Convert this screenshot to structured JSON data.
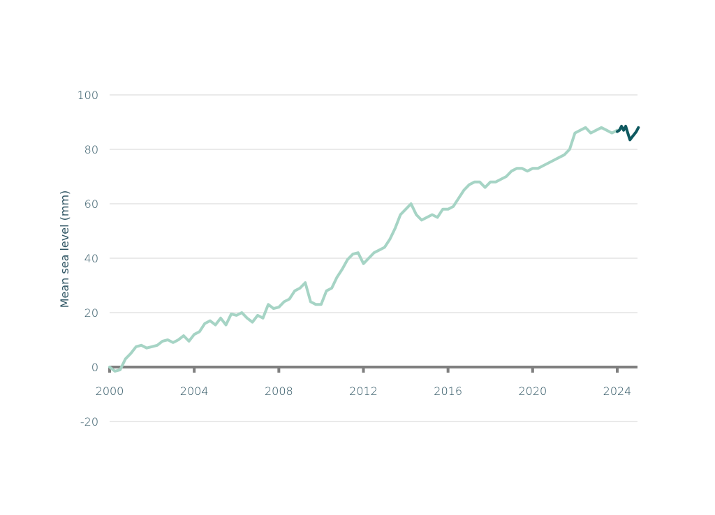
{
  "chart_data": {
    "type": "line",
    "title": "",
    "xlabel": "",
    "ylabel": "Mean sea level (mm)",
    "xlim": [
      2000,
      2025
    ],
    "ylim": [
      -20,
      100
    ],
    "grid": true,
    "legend": null,
    "x_ticks": [
      "2000",
      "2004",
      "2008",
      "2012",
      "2016",
      "2020",
      "2024"
    ],
    "y_ticks": [
      "100",
      "80",
      "60",
      "40",
      "20",
      "0",
      "-20"
    ],
    "series": [
      {
        "name": "Mean sea level (historical)",
        "color": "#a6d4c5",
        "x": [
          2000.0,
          2000.25,
          2000.5,
          2000.75,
          2001.0,
          2001.25,
          2001.5,
          2001.75,
          2002.0,
          2002.25,
          2002.5,
          2002.75,
          2003.0,
          2003.25,
          2003.5,
          2003.75,
          2004.0,
          2004.25,
          2004.5,
          2004.75,
          2005.0,
          2005.25,
          2005.5,
          2005.75,
          2006.0,
          2006.25,
          2006.5,
          2006.75,
          2007.0,
          2007.25,
          2007.5,
          2007.75,
          2008.0,
          2008.25,
          2008.5,
          2008.75,
          2009.0,
          2009.25,
          2009.5,
          2009.75,
          2010.0,
          2010.25,
          2010.5,
          2010.75,
          2011.0,
          2011.25,
          2011.5,
          2011.75,
          2012.0,
          2012.25,
          2012.5,
          2012.75,
          2013.0,
          2013.25,
          2013.5,
          2013.75,
          2014.0,
          2014.25,
          2014.5,
          2014.75,
          2015.0,
          2015.25,
          2015.5,
          2015.75,
          2016.0,
          2016.25,
          2016.5,
          2016.75,
          2017.0,
          2017.25,
          2017.5,
          2017.75,
          2018.0,
          2018.25,
          2018.5,
          2018.75,
          2019.0,
          2019.25,
          2019.5,
          2019.75,
          2020.0,
          2020.25,
          2020.5,
          2020.75,
          2021.0,
          2021.25,
          2021.5,
          2021.75,
          2022.0,
          2022.25,
          2022.5,
          2022.75,
          2023.0,
          2023.25,
          2023.5,
          2023.75,
          2024.0
        ],
        "y": [
          0,
          -1.5,
          -1,
          3,
          5,
          7.5,
          8,
          7,
          7.5,
          8,
          9.5,
          10,
          9,
          10,
          11.5,
          9.5,
          12,
          13,
          16,
          17,
          15.5,
          18,
          15.5,
          19.5,
          19,
          20,
          18,
          16.5,
          19,
          18,
          23,
          21.5,
          22,
          24,
          25,
          28,
          29,
          31,
          24,
          23,
          23,
          28,
          29,
          33,
          36,
          39.5,
          41.5,
          42,
          38,
          40,
          42,
          43,
          44,
          47,
          51,
          56,
          58,
          60,
          56,
          54,
          55,
          56,
          55,
          58,
          58,
          59,
          62,
          65,
          67,
          68,
          68,
          66,
          68,
          68,
          69,
          70,
          72,
          73,
          73,
          72,
          73,
          73,
          74,
          75,
          76,
          77,
          78,
          80,
          86,
          87,
          88,
          86,
          87,
          88,
          87,
          86,
          87
        ],
        "values_note": "approximate, read from plot"
      },
      {
        "name": "Mean sea level (2024, highlighted)",
        "color": "#0f5960",
        "x": [
          2024.0,
          2024.1,
          2024.2,
          2024.3,
          2024.4,
          2024.5,
          2024.6,
          2024.7,
          2024.8,
          2024.9,
          2025.0
        ],
        "y": [
          86.5,
          87,
          88.5,
          87,
          88.5,
          86,
          83.5,
          84.5,
          85.5,
          86.5,
          88
        ]
      }
    ]
  },
  "axis": {
    "y_title": "Mean sea level (mm)",
    "y_ticks": [
      {
        "value": 100,
        "label": "100"
      },
      {
        "value": 80,
        "label": "80"
      },
      {
        "value": 60,
        "label": "60"
      },
      {
        "value": 40,
        "label": "40"
      },
      {
        "value": 20,
        "label": "20"
      },
      {
        "value": 0,
        "label": "0"
      },
      {
        "value": -20,
        "label": "-20"
      }
    ],
    "x_ticks": [
      {
        "value": 2000,
        "label": "2000"
      },
      {
        "value": 2004,
        "label": "2004"
      },
      {
        "value": 2008,
        "label": "2008"
      },
      {
        "value": 2012,
        "label": "2012"
      },
      {
        "value": 2016,
        "label": "2016"
      },
      {
        "value": 2020,
        "label": "2020"
      },
      {
        "value": 2024,
        "label": "2024"
      }
    ]
  },
  "colors": {
    "gridline": "#d4d4d4",
    "zero_axis": "#7f7f7f",
    "text": "#2f5563",
    "series_main": "#a6d4c5",
    "series_highlight": "#0f5960"
  }
}
